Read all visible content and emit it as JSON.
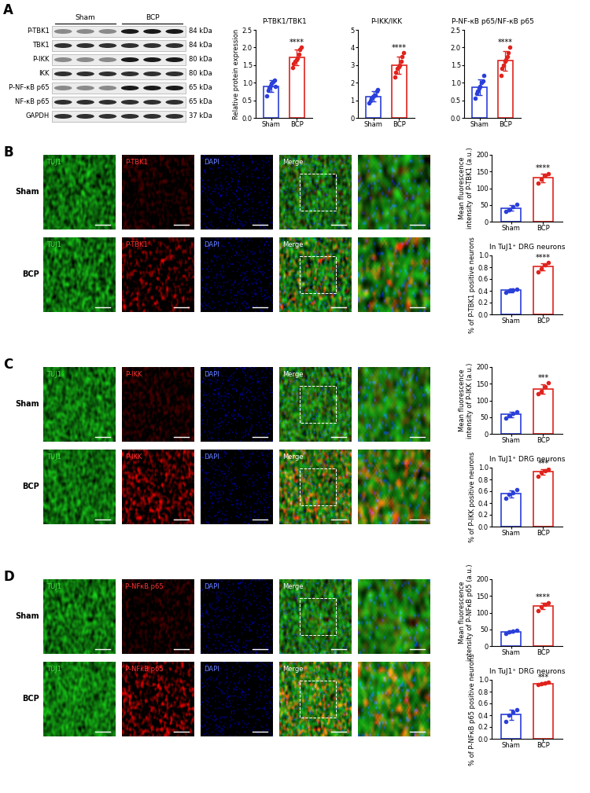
{
  "panel_labels": [
    "A",
    "B",
    "C",
    "D"
  ],
  "blot": {
    "groups": [
      "Sham",
      "BCP"
    ],
    "rows": [
      {
        "label": "P-TBK1",
        "size": "84 kDa"
      },
      {
        "label": "TBK1",
        "size": "84 kDa"
      },
      {
        "label": "P-IKK",
        "size": "80 kDa"
      },
      {
        "label": "IKK",
        "size": "80 kDa"
      },
      {
        "label": "P-NF-κB p65",
        "size": "65 kDa"
      },
      {
        "label": "NF-κB p65",
        "size": "65 kDa"
      },
      {
        "label": "GAPDH",
        "size": "37 kDa"
      }
    ]
  },
  "image_panels": [
    {
      "columns": [
        "TUJ1",
        "P-TBK1",
        "DAPI",
        "Merge"
      ],
      "rows": [
        "Sham",
        "BCP"
      ]
    },
    {
      "columns": [
        "TUJ1",
        "P-IKK",
        "DAPI",
        "Merge"
      ],
      "rows": [
        "Sham",
        "BCP"
      ]
    },
    {
      "columns": [
        "TUJ1",
        "P-NFκB p65",
        "DAPI",
        "Merge"
      ],
      "rows": [
        "Sham",
        "BCP"
      ]
    }
  ],
  "chart_data": [
    {
      "type": "bar",
      "title": "P-TBK1/TBK1",
      "ylabel": "Relative protein expression",
      "categories": [
        "Sham",
        "BCP"
      ],
      "values": [
        0.9,
        1.72
      ],
      "errors": [
        0.17,
        0.22
      ],
      "points": [
        [
          0.62,
          0.78,
          0.85,
          0.92,
          0.98,
          1.03,
          1.08,
          0.9
        ],
        [
          1.42,
          1.55,
          1.6,
          1.65,
          1.7,
          1.8,
          1.95,
          2.0
        ]
      ],
      "colors": [
        "#2b3fd9",
        "#e0231d"
      ],
      "annotation": "****",
      "ylim": [
        0,
        2.5
      ],
      "yticks": [
        {
          "value": 0,
          "label": "0.0"
        },
        {
          "value": 0.5,
          "label": "0.5"
        },
        {
          "value": 1,
          "label": "1.0"
        },
        {
          "value": 1.5,
          "label": "1.5"
        },
        {
          "value": 2,
          "label": "2.0"
        },
        {
          "value": 2.5,
          "label": "2.5"
        }
      ]
    },
    {
      "type": "bar",
      "title": "P-IKK/IKK",
      "categories": [
        "Sham",
        "BCP"
      ],
      "values": [
        1.22,
        3.0
      ],
      "errors": [
        0.28,
        0.5
      ],
      "points": [
        [
          0.85,
          1.0,
          1.1,
          1.2,
          1.25,
          1.3,
          1.5,
          1.6
        ],
        [
          2.3,
          2.6,
          2.8,
          2.9,
          3.0,
          3.2,
          3.5,
          3.7
        ]
      ],
      "colors": [
        "#2b3fd9",
        "#e0231d"
      ],
      "annotation": "****",
      "ylim": [
        0,
        5
      ],
      "yticks": [
        0,
        1,
        2,
        3,
        4,
        5
      ]
    },
    {
      "type": "bar",
      "title": "P-NF-κB p65/NF-κB p65",
      "categories": [
        "Sham",
        "BCP"
      ],
      "values": [
        0.87,
        1.62
      ],
      "errors": [
        0.22,
        0.27
      ],
      "points": [
        [
          0.55,
          0.7,
          0.75,
          0.85,
          0.9,
          1.0,
          1.05,
          1.2
        ],
        [
          1.2,
          1.4,
          1.5,
          1.6,
          1.65,
          1.75,
          1.85,
          2.0
        ]
      ],
      "colors": [
        "#2b3fd9",
        "#e0231d"
      ],
      "annotation": "****",
      "ylim": [
        0,
        2.5
      ],
      "yticks": [
        {
          "value": 0,
          "label": "0.0"
        },
        {
          "value": 0.5,
          "label": "0.5"
        },
        {
          "value": 1,
          "label": "1.0"
        },
        {
          "value": 1.5,
          "label": "1.5"
        },
        {
          "value": 2,
          "label": "2.0"
        },
        {
          "value": 2.5,
          "label": "2.5"
        }
      ]
    },
    {
      "type": "bar",
      "ylabel": "Mean fluorescence\nintensity of P-TBK1 (a.u.)",
      "categories": [
        "Sham",
        "BCP"
      ],
      "values": [
        41,
        131
      ],
      "errors": [
        9,
        13
      ],
      "points": [
        [
          30,
          36,
          45,
          52
        ],
        [
          115,
          126,
          140,
          143
        ]
      ],
      "colors": [
        "#2b3fd9",
        "#e0231d"
      ],
      "annotation": "****",
      "ylim": [
        0,
        200
      ],
      "yticks": [
        0,
        50,
        100,
        150,
        200
      ]
    },
    {
      "type": "bar",
      "title": "In TuJ1⁺ DRG neurons",
      "ylabel": "% of P-TBK1 positive neurons",
      "categories": [
        "Sham",
        "BCP"
      ],
      "values": [
        0.41,
        0.81
      ],
      "errors": [
        0.03,
        0.06
      ],
      "points": [
        [
          0.38,
          0.4,
          0.42,
          0.43
        ],
        [
          0.72,
          0.78,
          0.84,
          0.88
        ]
      ],
      "colors": [
        "#2b3fd9",
        "#e0231d"
      ],
      "annotation": "****",
      "ylim": [
        0,
        1
      ],
      "yticks": [
        {
          "value": 0,
          "label": "0.0"
        },
        {
          "value": 0.2,
          "label": "0.2"
        },
        {
          "value": 0.4,
          "label": "0.4"
        },
        {
          "value": 0.6,
          "label": "0.6"
        },
        {
          "value": 0.8,
          "label": "0.8"
        },
        {
          "value": 1,
          "label": "1.0"
        }
      ]
    },
    {
      "type": "bar",
      "ylabel": "Mean fluorescence\nintensity of P-IKK (a.u.)",
      "categories": [
        "Sham",
        "BCP"
      ],
      "values": [
        58,
        135
      ],
      "errors": [
        8,
        14
      ],
      "points": [
        [
          48,
          55,
          62,
          67
        ],
        [
          120,
          128,
          140,
          152
        ]
      ],
      "colors": [
        "#2b3fd9",
        "#e0231d"
      ],
      "annotation": "***",
      "ylim": [
        0,
        200
      ],
      "yticks": [
        0,
        50,
        100,
        150,
        200
      ]
    },
    {
      "type": "bar",
      "title": "In TuJ1⁺ DRG neurons",
      "ylabel": "% of P-IKK positive neurons",
      "categories": [
        "Sham",
        "BCP"
      ],
      "values": [
        0.56,
        0.93
      ],
      "errors": [
        0.06,
        0.05
      ],
      "points": [
        [
          0.48,
          0.55,
          0.58,
          0.63
        ],
        [
          0.86,
          0.92,
          0.95,
          0.98
        ]
      ],
      "colors": [
        "#2b3fd9",
        "#e0231d"
      ],
      "annotation": "***",
      "ylim": [
        0,
        1
      ],
      "yticks": [
        {
          "value": 0,
          "label": "0.0"
        },
        {
          "value": 0.2,
          "label": "0.2"
        },
        {
          "value": 0.4,
          "label": "0.4"
        },
        {
          "value": 0.6,
          "label": "0.6"
        },
        {
          "value": 0.8,
          "label": "0.8"
        },
        {
          "value": 1,
          "label": "1.0"
        }
      ]
    },
    {
      "type": "bar",
      "ylabel": "Mean fluorescence\nintensity of P-NFκB p65 (a.u.)",
      "categories": [
        "Sham",
        "BCP"
      ],
      "values": [
        43,
        120
      ],
      "errors": [
        4,
        10
      ],
      "points": [
        [
          38,
          42,
          45,
          47
        ],
        [
          105,
          118,
          125,
          130
        ]
      ],
      "colors": [
        "#2b3fd9",
        "#e0231d"
      ],
      "annotation": "****",
      "ylim": [
        0,
        200
      ],
      "yticks": [
        0,
        50,
        100,
        150,
        200
      ]
    },
    {
      "type": "bar",
      "title": "In TuJ1⁺ DRG neurons",
      "ylabel": "% of P-NFκB p65 positive neurons",
      "categories": [
        "Sham",
        "BCP"
      ],
      "values": [
        0.41,
        0.94
      ],
      "errors": [
        0.09,
        0.02
      ],
      "points": [
        [
          0.3,
          0.4,
          0.45,
          0.5
        ],
        [
          0.92,
          0.93,
          0.95,
          0.96
        ]
      ],
      "colors": [
        "#2b3fd9",
        "#e0231d"
      ],
      "annotation": "***",
      "ylim": [
        0,
        1
      ],
      "yticks": [
        {
          "value": 0,
          "label": "0.0"
        },
        {
          "value": 0.2,
          "label": "0.2"
        },
        {
          "value": 0.4,
          "label": "0.4"
        },
        {
          "value": 0.6,
          "label": "0.6"
        },
        {
          "value": 0.8,
          "label": "0.8"
        },
        {
          "value": 1,
          "label": "1.0"
        }
      ]
    }
  ]
}
